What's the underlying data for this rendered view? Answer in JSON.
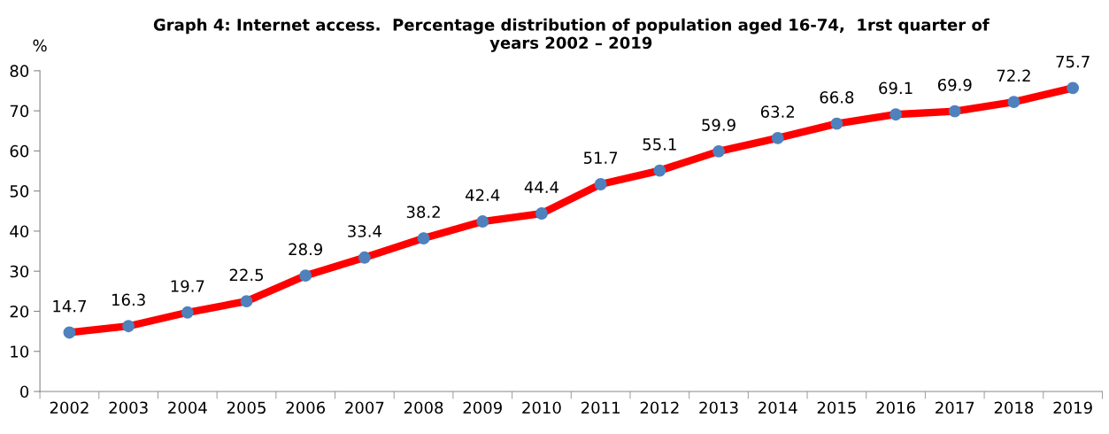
{
  "chart_data": {
    "type": "line",
    "title": "Graph 4: Internet access.  Percentage distribution of population aged 16-74,  1rst quarter of\nyears 2002 – 2019",
    "ylabel": "%",
    "categories": [
      "2002",
      "2003",
      "2004",
      "2005",
      "2006",
      "2007",
      "2008",
      "2009",
      "2010",
      "2011",
      "2012",
      "2013",
      "2014",
      "2015",
      "2016",
      "2017",
      "2018",
      "2019"
    ],
    "series": [
      {
        "color": "#ff0000",
        "colors": [
          "#4f81bd",
          "#4f81bd",
          "#4f81bd",
          "#4f81bd",
          "#4f81bd",
          "#4f81bd",
          "#4f81bd",
          "#4f81bd",
          "#4f81bd",
          "#4f81bd",
          "#4f81bd",
          "#4f81bd",
          "#4f81bd",
          "#4f81bd",
          "#4f81bd",
          "#4f81bd",
          "#4f81bd",
          "#4f81bd"
        ],
        "values": [
          14.7,
          16.3,
          19.7,
          22.5,
          28.9,
          33.4,
          38.2,
          42.4,
          44.4,
          51.7,
          55.1,
          59.9,
          63.2,
          66.8,
          69.1,
          69.9,
          72.2,
          75.7
        ]
      }
    ],
    "ylim": [
      0,
      80
    ],
    "yticks": [
      0,
      10,
      20,
      30,
      40,
      50,
      60,
      70,
      80
    ],
    "grid": false,
    "legend": false,
    "marker": "circle",
    "line_style": "solid",
    "data_labels": true
  }
}
